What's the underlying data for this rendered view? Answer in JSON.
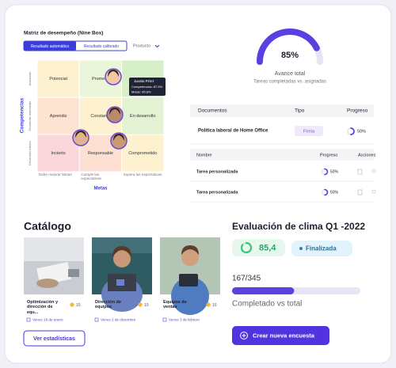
{
  "nine_box": {
    "title": "Matriz de desempeño (Nine Box)",
    "tabs": [
      "Resultado automático",
      "Resultado calibrado"
    ],
    "dropdown": "Producto",
    "y_axis_title": "Competencias",
    "y_labels": [
      "Avanzado",
      "Desarrollo intermedio",
      "Desarrollo básico"
    ],
    "x_axis_title": "Metas",
    "x_labels": [
      "Debe mejorar Metas",
      "Cumple las expectativas",
      "Supera las expectativas"
    ],
    "cells": [
      [
        "Potencial",
        "Promesa",
        ""
      ],
      [
        "Aprendiz",
        "Constante",
        "En desarrollo"
      ],
      [
        "Incierto",
        "Responsable",
        "Comprometido"
      ]
    ],
    "tooltip": {
      "name": "Juanita Pérez",
      "competencias": "Competencias: 87.5%",
      "metas": "Metas: 95.8%"
    }
  },
  "progress": {
    "value": 85,
    "label": "85%",
    "title": "Avance total",
    "subtitle": "Tareas completadas vs. asignadas"
  },
  "documents": {
    "headers": [
      "Documentos",
      "Tipo",
      "Progreso"
    ],
    "rows": [
      {
        "name": "Política laboral de Home Office",
        "type": "Firma",
        "value": 50,
        "label": "50%"
      }
    ],
    "sub_headers": [
      "Nombre",
      "Progreso",
      "Acciones"
    ],
    "sub_rows": [
      {
        "name": "Tarea personalizada",
        "value": 50,
        "label": "50%"
      },
      {
        "name": "Tarea personalizada",
        "value": 50,
        "label": "50%"
      }
    ]
  },
  "catalog": {
    "title": "Catálogo",
    "cards": [
      {
        "title": "Optimización y dirección de equ...",
        "points": "10",
        "due": "Vence 16 de enero"
      },
      {
        "title": "Dirección de equipos",
        "points": "10",
        "due": "Vence 2 de diciembre"
      },
      {
        "title": "Equipos de ventas",
        "points": "10",
        "due": "Vence 3 de febrero"
      }
    ],
    "button": "Ver estadísticas"
  },
  "survey": {
    "title": "Evaluación de clima Q1 -2022",
    "score": 85.4,
    "score_label": "85,4",
    "status": "Finalizada",
    "completed": 167,
    "total": 345,
    "count_label": "167/345",
    "caption": "Completado vs total",
    "button": "Crear nueva encuesta"
  }
}
